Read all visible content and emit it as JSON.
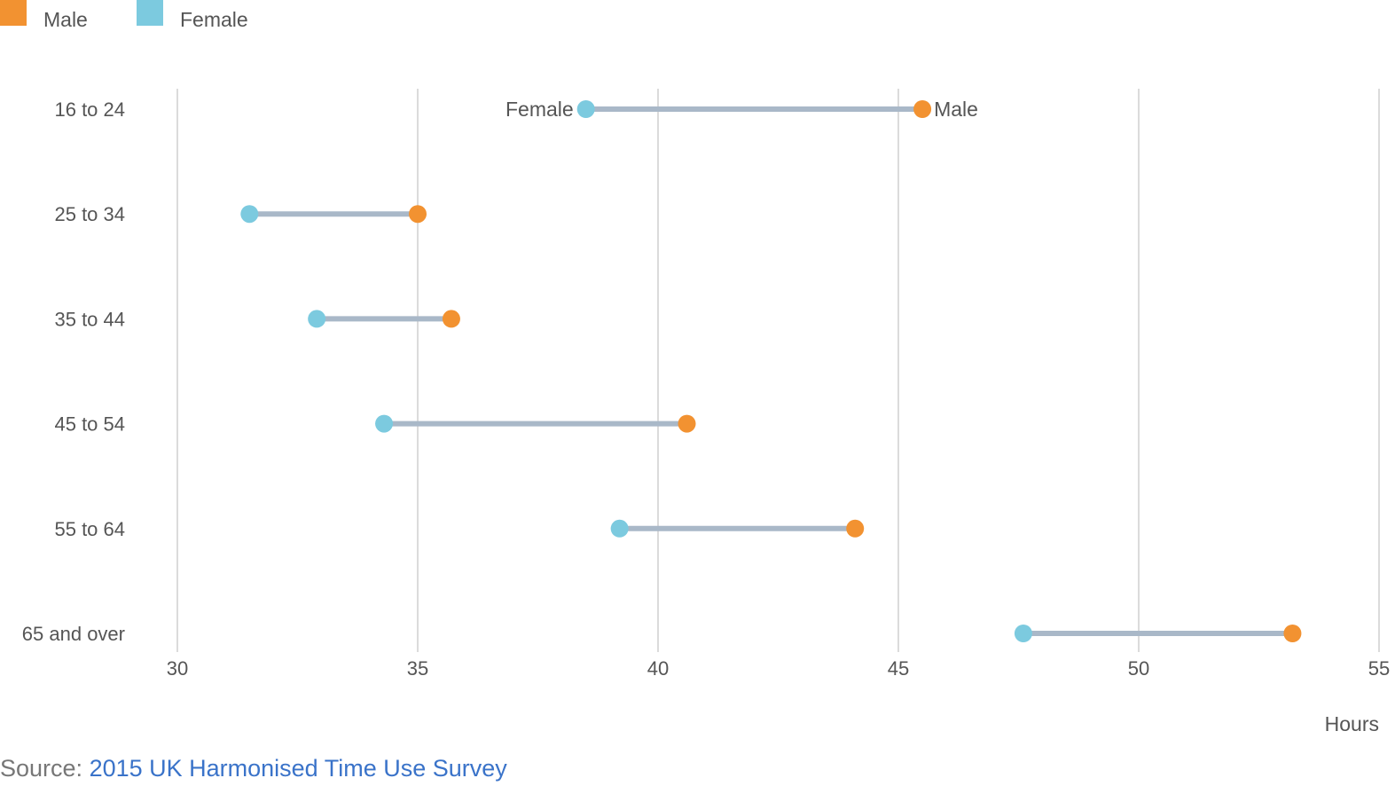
{
  "chart_data": {
    "type": "dumbbell",
    "title": "",
    "xlabel": "Hours",
    "ylabel": "",
    "xlim": [
      30,
      55
    ],
    "x_ticks": [
      "30",
      "35",
      "40",
      "45",
      "50",
      "55"
    ],
    "grid": "vertical",
    "legend_position": "top-left",
    "categories": [
      "16 to 24",
      "25 to 34",
      "35 to 44",
      "45 to 54",
      "55 to 64",
      "65 and over"
    ],
    "series": [
      {
        "name": "Male",
        "color": "#f29231",
        "values": [
          45.5,
          35.0,
          35.7,
          40.6,
          44.1,
          53.2
        ]
      },
      {
        "name": "Female",
        "color": "#7ccadf",
        "values": [
          38.5,
          31.5,
          32.9,
          34.3,
          39.2,
          47.6
        ]
      }
    ],
    "connector_color": "#a9b8c8",
    "point_labels": {
      "category": "16 to 24",
      "female": "Female",
      "male": "Male"
    }
  },
  "source": {
    "prefix": "Source: ",
    "link_text": "2015 UK Harmonised Time Use Survey"
  }
}
